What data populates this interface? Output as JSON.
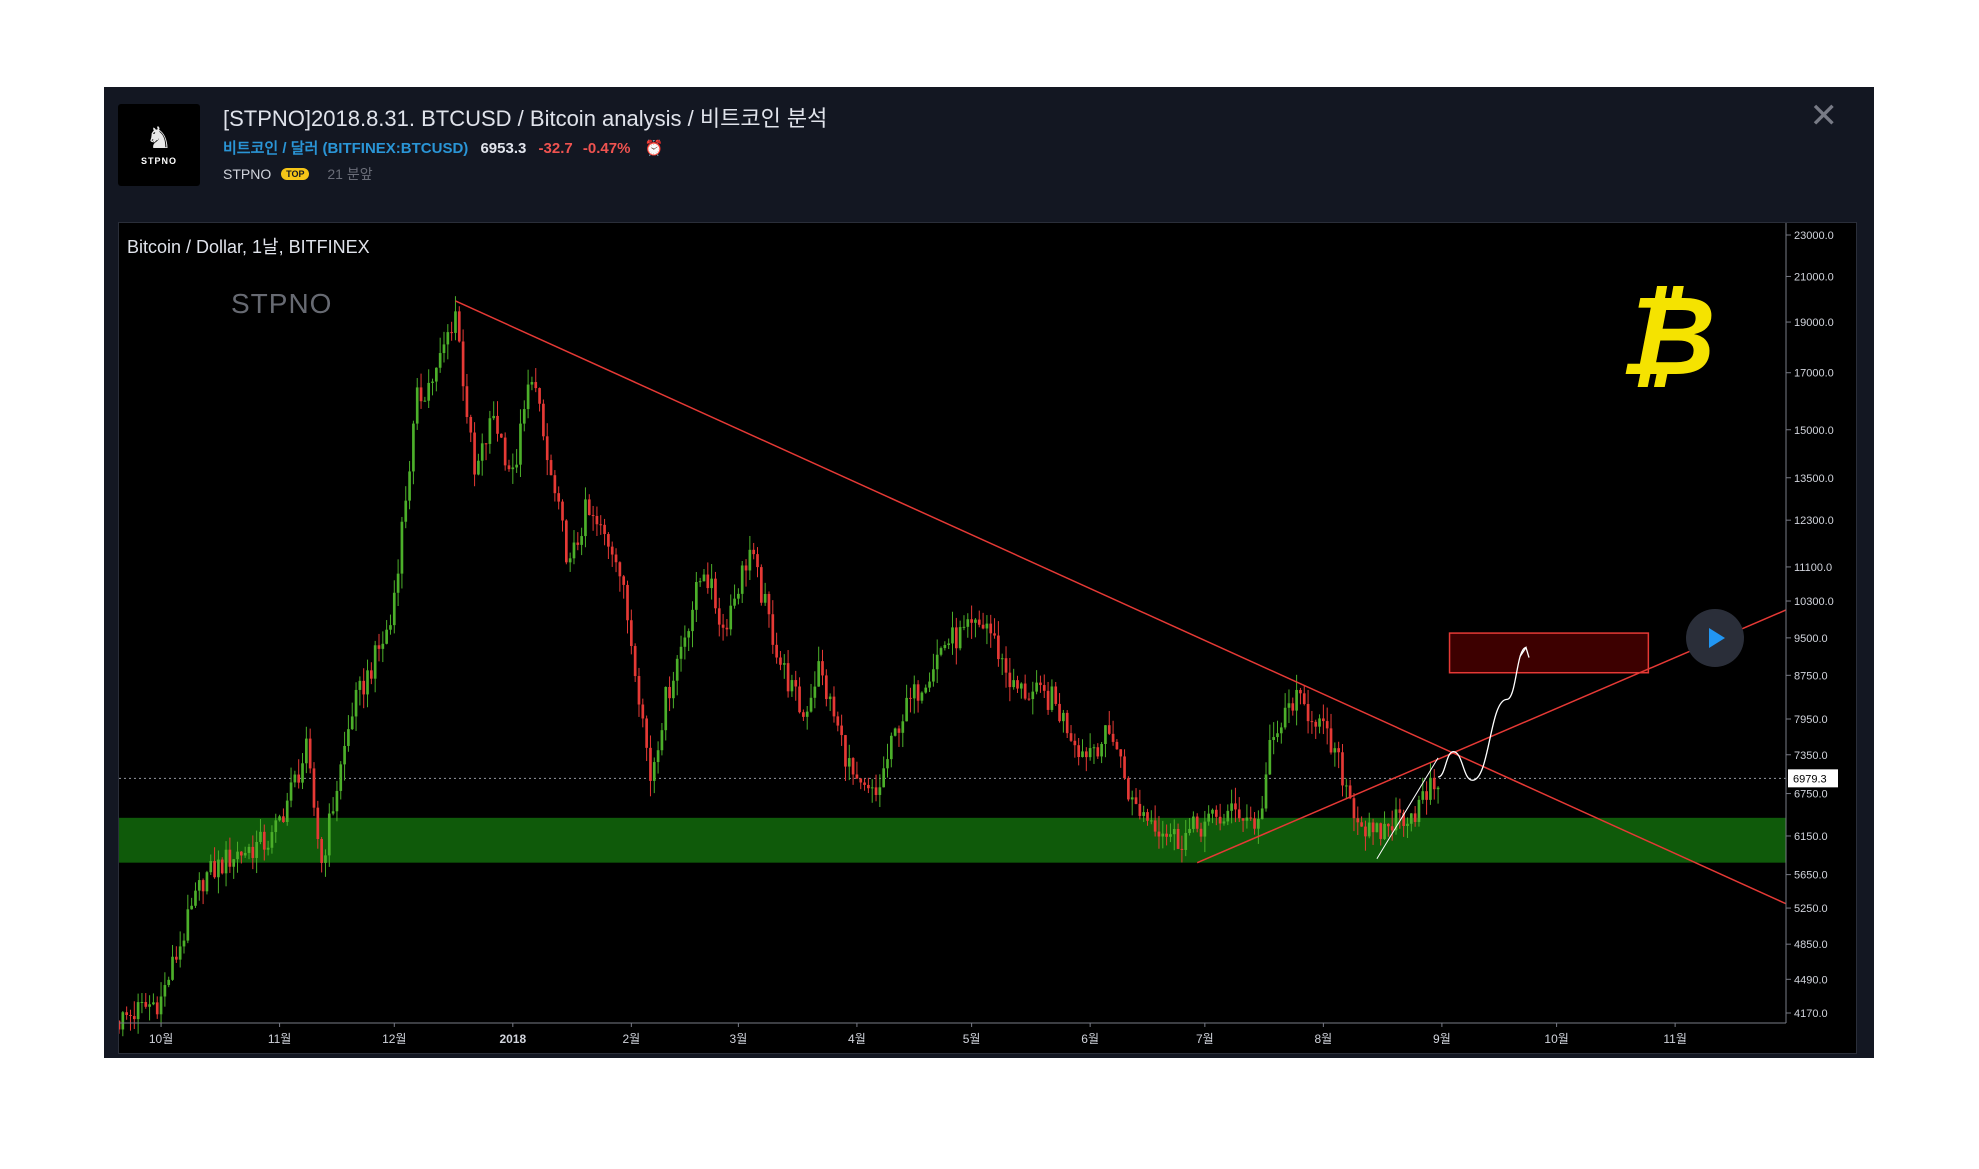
{
  "header": {
    "title": "[STPNO]2018.8.31. BTCUSD / Bitcoin analysis / 비트코인 분석",
    "symbol_name": "비트코인 / 달러 (BITFINEX:BTCUSD)",
    "price": "6953.3",
    "change": "-32.7",
    "change_pct": "-0.47%",
    "author": "STPNO",
    "badge": "TOP",
    "time_ago": "21 분앞",
    "avatar_text": "STPNO"
  },
  "colors": {
    "up": "#4caf2a",
    "down": "#e53935",
    "trendline": "#e53935",
    "support_zone": "#0f5a0a",
    "target_box_fill": "#3d0000",
    "target_box_border": "#e53935",
    "projection": "#ffffff"
  },
  "chart_data": {
    "type": "candlestick",
    "title": "Bitcoin / Dollar, 1날, BITFINEX",
    "watermark": "STPNO",
    "current_price_label": "6979.3",
    "y_scale": "log",
    "ylim": [
      4000,
      24000
    ],
    "xlim": [
      "2017-09-20",
      "2018-11-30"
    ],
    "y_ticks": [
      "23000.0",
      "21000.0",
      "19000.0",
      "17000.0",
      "15000.0",
      "13500.0",
      "12300.0",
      "11100.0",
      "10300.0",
      "9500.0",
      "8750.0",
      "7950.0",
      "7350.0",
      "6750.0",
      "6150.0",
      "5650.0",
      "5250.0",
      "4850.0",
      "4490.0",
      "4170.0"
    ],
    "x_ticks": [
      {
        "label": "10월",
        "date": "2017-10-01"
      },
      {
        "label": "11월",
        "date": "2017-11-01"
      },
      {
        "label": "12월",
        "date": "2017-12-01"
      },
      {
        "label": "2018",
        "date": "2018-01-01"
      },
      {
        "label": "2월",
        "date": "2018-02-01"
      },
      {
        "label": "3월",
        "date": "2018-03-01"
      },
      {
        "label": "4월",
        "date": "2018-04-01"
      },
      {
        "label": "5월",
        "date": "2018-05-01"
      },
      {
        "label": "6월",
        "date": "2018-06-01"
      },
      {
        "label": "7월",
        "date": "2018-07-01"
      },
      {
        "label": "8월",
        "date": "2018-08-01"
      },
      {
        "label": "9월",
        "date": "2018-09-01"
      },
      {
        "label": "10월",
        "date": "2018-10-01"
      },
      {
        "label": "11월",
        "date": "2018-11-01"
      }
    ],
    "price_path": [
      [
        "2017-09-20",
        4100
      ],
      [
        "2017-10-01",
        4300
      ],
      [
        "2017-10-12",
        5600
      ],
      [
        "2017-10-20",
        5900
      ],
      [
        "2017-10-30",
        6100
      ],
      [
        "2017-11-08",
        7400
      ],
      [
        "2017-11-12",
        5800
      ],
      [
        "2017-11-20",
        8100
      ],
      [
        "2017-11-30",
        9800
      ],
      [
        "2017-12-07",
        16000
      ],
      [
        "2017-12-12",
        17000
      ],
      [
        "2017-12-17",
        19500
      ],
      [
        "2017-12-22",
        13500
      ],
      [
        "2017-12-27",
        15500
      ],
      [
        "2018-01-01",
        13500
      ],
      [
        "2018-01-06",
        17100
      ],
      [
        "2018-01-10",
        14000
      ],
      [
        "2018-01-16",
        11100
      ],
      [
        "2018-01-20",
        12500
      ],
      [
        "2018-01-28",
        11500
      ],
      [
        "2018-02-02",
        9000
      ],
      [
        "2018-02-06",
        7000
      ],
      [
        "2018-02-10",
        8300
      ],
      [
        "2018-02-20",
        11100
      ],
      [
        "2018-02-25",
        9700
      ],
      [
        "2018-03-04",
        11500
      ],
      [
        "2018-03-12",
        9000
      ],
      [
        "2018-03-18",
        8000
      ],
      [
        "2018-03-22",
        8900
      ],
      [
        "2018-04-01",
        6800
      ],
      [
        "2018-04-06",
        6700
      ],
      [
        "2018-04-12",
        7900
      ],
      [
        "2018-04-24",
        9400
      ],
      [
        "2018-05-05",
        9800
      ],
      [
        "2018-05-12",
        8500
      ],
      [
        "2018-05-22",
        8300
      ],
      [
        "2018-05-30",
        7400
      ],
      [
        "2018-06-07",
        7700
      ],
      [
        "2018-06-12",
        6600
      ],
      [
        "2018-06-24",
        6100
      ],
      [
        "2018-06-30",
        6300
      ],
      [
        "2018-07-10",
        6500
      ],
      [
        "2018-07-15",
        6300
      ],
      [
        "2018-07-18",
        7400
      ],
      [
        "2018-07-24",
        8300
      ],
      [
        "2018-07-30",
        8000
      ],
      [
        "2018-08-05",
        7200
      ],
      [
        "2018-08-10",
        6400
      ],
      [
        "2018-08-14",
        6100
      ],
      [
        "2018-08-20",
        6400
      ],
      [
        "2018-08-25",
        6500
      ],
      [
        "2018-08-31",
        6979
      ]
    ],
    "lines": [
      {
        "name": "descending-trendline",
        "from": [
          "2017-12-17",
          19900
        ],
        "to": [
          "2018-11-30",
          5300
        ]
      },
      {
        "name": "ascending-trendline",
        "from": [
          "2018-06-29",
          5800
        ],
        "to": [
          "2018-11-30",
          10100
        ]
      }
    ],
    "support_zone": {
      "from": 5800,
      "to": 6400
    },
    "target_zone": {
      "from_date": "2018-09-03",
      "to_date": "2018-10-25",
      "low": 8800,
      "high": 9600
    },
    "projection": [
      [
        "2018-08-31",
        7000
      ],
      [
        "2018-09-04",
        7400
      ],
      [
        "2018-09-09",
        6950
      ],
      [
        "2018-09-18",
        8300
      ],
      [
        "2018-09-23",
        9300
      ]
    ],
    "small_arrow": [
      [
        "2018-08-15",
        5850
      ],
      [
        "2018-08-31",
        7300
      ]
    ]
  }
}
